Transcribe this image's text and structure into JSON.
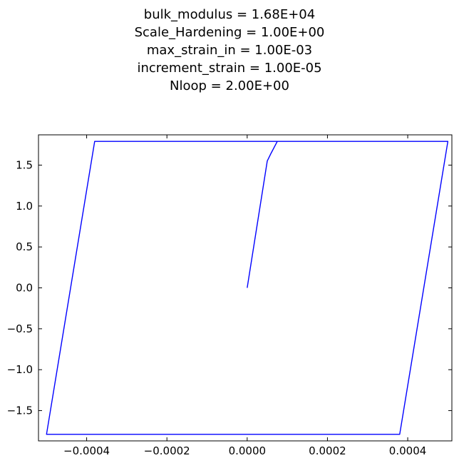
{
  "title_lines": [
    "bulk_modulus = 1.68E+04",
    "Scale_Hardening = 1.00E+00",
    "max_strain_in = 1.00E-03",
    "increment_strain = 1.00E-05",
    "Nloop = 2.00E+00"
  ],
  "chart_data": {
    "type": "line",
    "title": "bulk_modulus = 1.68E+04\nScale_Hardening = 1.00E+00\nmax_strain_in = 1.00E-03\nincrement_strain = 1.00E-05\nNloop = 2.00E+00",
    "xlabel": "",
    "ylabel": "",
    "xlim": [
      -0.00052,
      0.00051
    ],
    "ylim": [
      -1.87,
      1.87
    ],
    "x_ticks": [
      -0.0004,
      -0.0002,
      0.0,
      0.0002,
      0.0004
    ],
    "x_tick_labels": [
      "−0.0004",
      "−0.0002",
      "0.0000",
      "0.0002",
      "0.0004"
    ],
    "y_ticks": [
      1.5,
      1.0,
      0.5,
      0.0,
      -0.5,
      -1.0,
      -1.5
    ],
    "y_tick_labels": [
      "1.5",
      "1.0",
      "0.5",
      "0.0",
      "−0.5",
      "−1.0",
      "−1.5"
    ],
    "grid": false,
    "legend": "none",
    "colors": {
      "line": "#0000ff",
      "axes": "#000000",
      "background": "#ffffff"
    },
    "series": [
      {
        "x": [
          0.0,
          5e-05,
          6e-05,
          7.5e-05,
          0.0005,
          0.00038,
          -0.0005,
          -0.00038,
          0.0005,
          0.00038,
          -0.0005,
          -0.00038,
          0.0005
        ],
        "y": [
          0.0,
          1.55,
          1.65,
          1.79,
          1.79,
          -1.79,
          -1.79,
          1.79,
          1.79,
          -1.79,
          -1.79,
          1.79,
          1.79
        ]
      }
    ]
  }
}
